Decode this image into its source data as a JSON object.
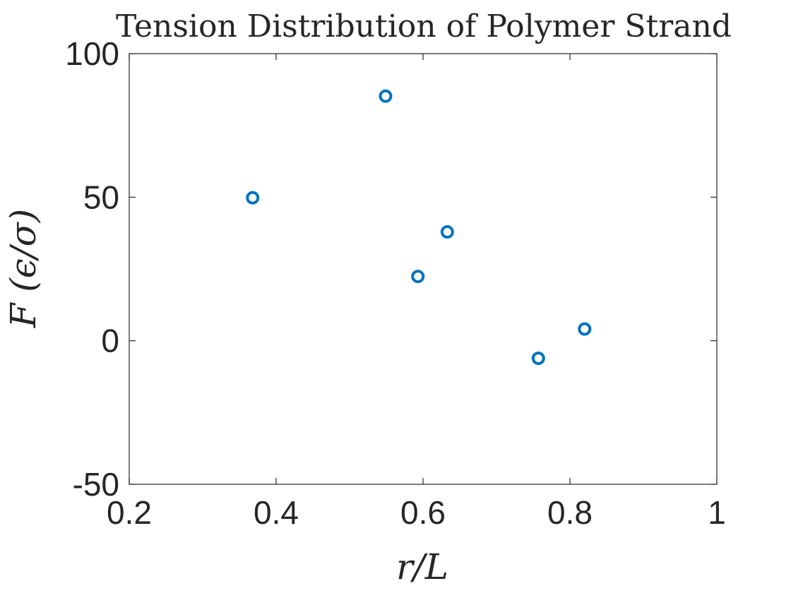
{
  "chart_data": {
    "type": "scatter",
    "title": "Tension Distribution of Polymer Strand",
    "xlabel": "r/L",
    "ylabel": "F (ϵ/σ)",
    "xlim": [
      0.2,
      1
    ],
    "ylim": [
      -50,
      100
    ],
    "xticks": [
      0.2,
      0.4,
      0.6,
      0.8,
      1
    ],
    "xtick_labels": [
      "0.2",
      "0.4",
      "0.6",
      "0.8",
      "1"
    ],
    "yticks": [
      -50,
      0,
      50,
      100
    ],
    "ytick_labels": [
      "-50",
      "0",
      "50",
      "100"
    ],
    "grid": false,
    "box": true,
    "marker": "circle-open",
    "color": "#0072bd",
    "series": [
      {
        "x": [
          0.368,
          0.549,
          0.593,
          0.633,
          0.757,
          0.82
        ],
        "y": [
          49.8,
          85.2,
          22.4,
          37.9,
          -6.1,
          4.1
        ]
      }
    ]
  }
}
